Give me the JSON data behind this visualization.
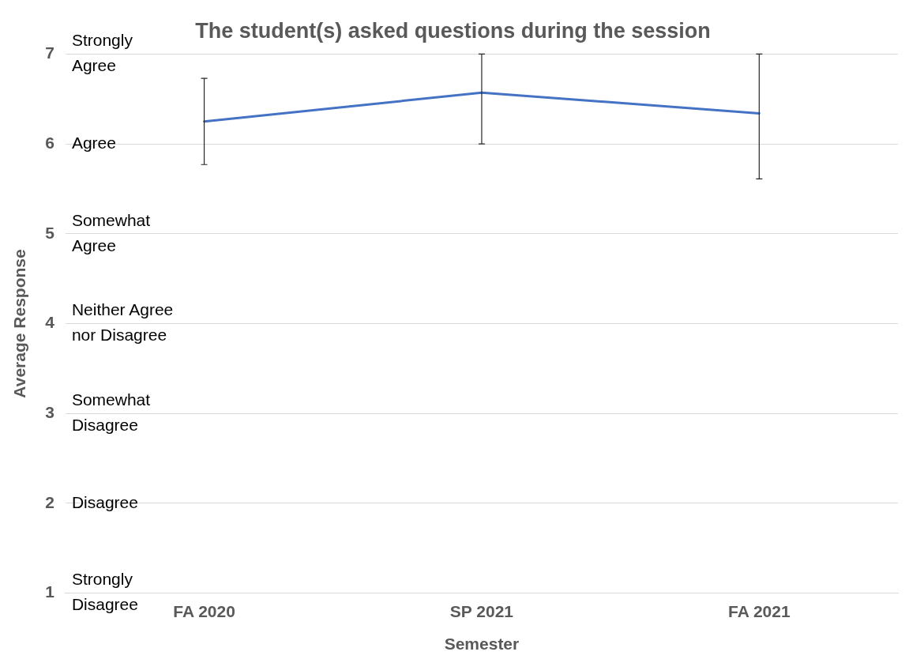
{
  "chart_data": {
    "type": "line",
    "title": "The student(s) asked questions during the session",
    "xlabel": "Semester",
    "ylabel": "Average Response",
    "categories": [
      "FA 2020",
      "SP 2021",
      "FA 2021"
    ],
    "series": [
      {
        "color": "#4472c4",
        "values": [
          6.25,
          6.57,
          6.34
        ],
        "errors": [
          [
            5.77,
            6.73
          ],
          [
            6.0,
            7.0
          ],
          [
            5.61,
            7.0
          ]
        ]
      }
    ],
    "ylim": [
      1,
      7
    ],
    "yticks": [
      1,
      2,
      3,
      4,
      5,
      6,
      7
    ],
    "grid": "y",
    "legend": false,
    "marker": "none",
    "line_style": "solid",
    "annotations": [
      "Strongly Agree",
      "Agree",
      "Somewhat Agree",
      "Neither Agree nor Disagree",
      "Somewhat Disagree",
      "Disagree",
      "Strongly Disagree"
    ]
  }
}
